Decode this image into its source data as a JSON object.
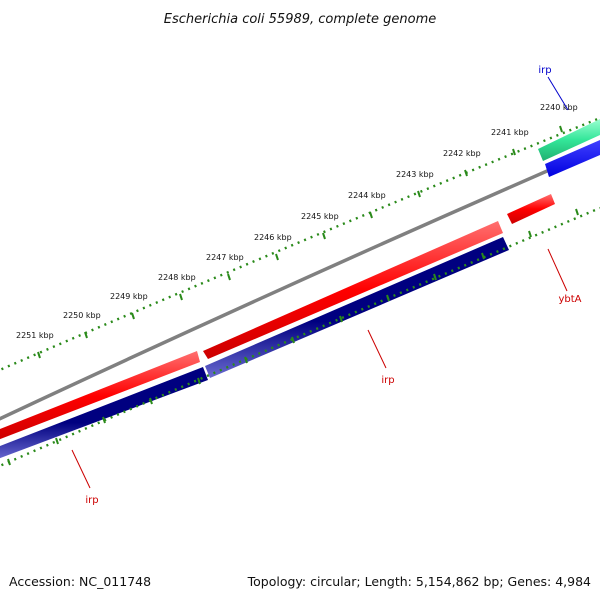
{
  "title": "Escherichia coli 55989, complete genome",
  "accession": "Accession: NC_011748",
  "topology": "Topology: circular; Length: 5,154,862 bp; Genes: 4,984",
  "ticks": [
    "2240 kbp",
    "2241 kbp",
    "2242 kbp",
    "2243 kbp",
    "2244 kbp",
    "2245 kbp",
    "2246 kbp",
    "2247 kbp",
    "2248 kbp",
    "2249 kbp",
    "2250 kbp",
    "2251 kbp"
  ],
  "features": [
    {
      "label": "irp",
      "color": "#0000cc"
    },
    {
      "label": "ybtA",
      "color": "#cc0000"
    },
    {
      "label": "irp",
      "color": "#cc0000"
    },
    {
      "label": "irp",
      "color": "#cc0000"
    }
  ],
  "colors": {
    "backbone": "#808080",
    "forward_cds": "#ff0000",
    "reverse_cds": "#000080",
    "gene_blue": "#0000ff",
    "gene_green": "#33e699",
    "tick": "#2a8a1a"
  }
}
